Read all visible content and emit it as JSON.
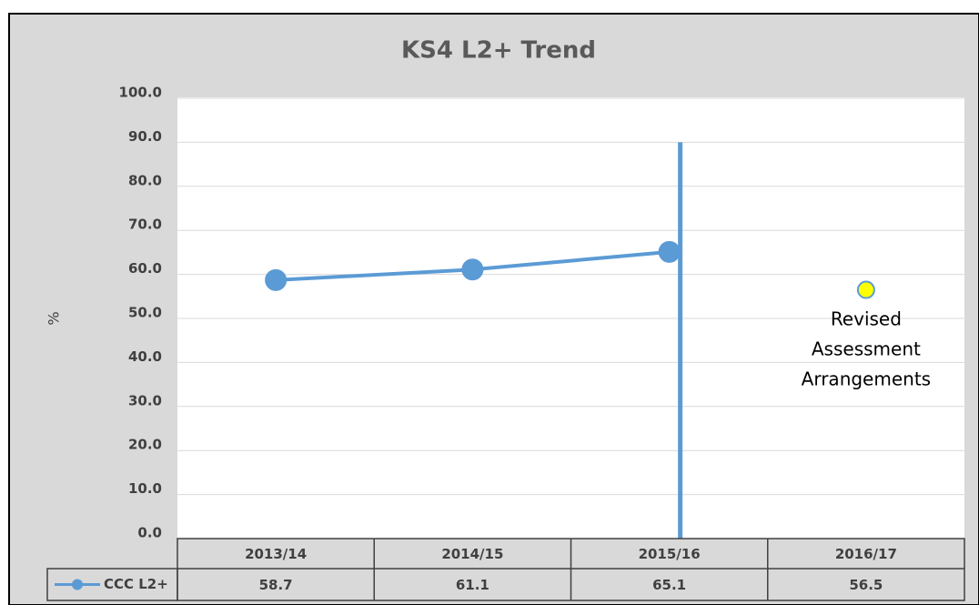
{
  "chart_data": {
    "type": "line",
    "title": "KS4 L2+ Trend",
    "y_label": "%",
    "categories": [
      "2013/14",
      "2014/15",
      "2015/16",
      "2016/17"
    ],
    "series": [
      {
        "name": "CCC L2+",
        "color": "#5b9bd5",
        "values": [
          58.7,
          61.1,
          65.1,
          56.5
        ],
        "marker_colors": [
          "#5b9bd5",
          "#5b9bd5",
          "#5b9bd5",
          "#ffff00"
        ]
      }
    ],
    "ylim": [
      0,
      100
    ],
    "yticks": [
      {
        "value": 0,
        "label": "0.0"
      },
      {
        "value": 10,
        "label": "10.0"
      },
      {
        "value": 20,
        "label": "20.0"
      },
      {
        "value": 30,
        "label": "30.0"
      },
      {
        "value": 40,
        "label": "40.0"
      },
      {
        "value": 50,
        "label": "50.0"
      },
      {
        "value": 60,
        "label": "60.0"
      },
      {
        "value": 70,
        "label": "70.0"
      },
      {
        "value": 80,
        "label": "80.0"
      },
      {
        "value": 90,
        "label": "90.0"
      },
      {
        "value": 100,
        "label": "100.0"
      }
    ],
    "grid": true,
    "data_table": true,
    "divider": {
      "after_category": 2,
      "top": 90,
      "color": "#5b9bd5"
    },
    "annotation": {
      "category": 3,
      "lines": [
        "Revised",
        "Assessment",
        "Arrangements"
      ]
    }
  }
}
